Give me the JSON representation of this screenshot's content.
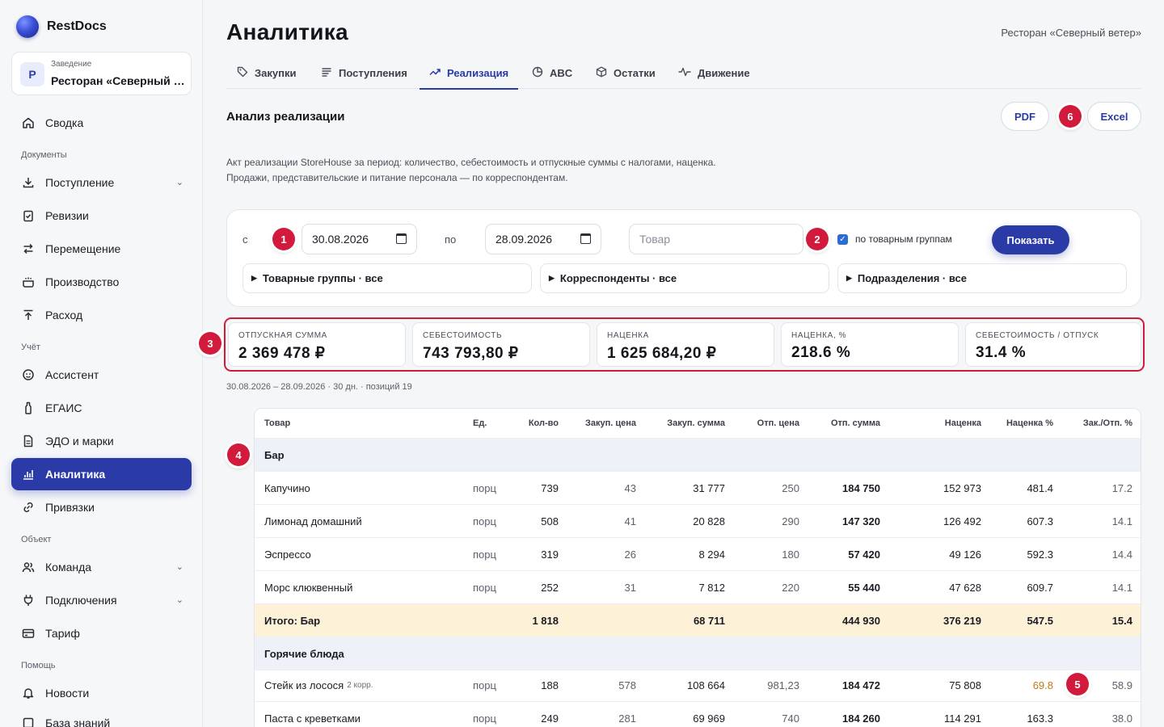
{
  "app": {
    "name": "RestDocs"
  },
  "venue": {
    "caption": "Заведение",
    "avatar": "Р",
    "name": "Ресторан «Северный ветер»"
  },
  "sidebar": {
    "summary": {
      "label": "Сводка",
      "icon": "home-icon"
    },
    "sections": {
      "documents": "Документы",
      "accounting": "Учёт",
      "object": "Объект",
      "help": "Помощь"
    },
    "items": {
      "incoming": "Поступление",
      "revisions": "Ревизии",
      "transfer": "Перемещение",
      "production": "Производство",
      "expense": "Расход",
      "assistant": "Ассистент",
      "egais": "ЕГАИС",
      "edo": "ЭДО и марки",
      "analytics": "Аналитика",
      "bindings": "Привязки",
      "team": "Команда",
      "connections": "Подключения",
      "tariff": "Тариф",
      "news": "Новости",
      "kb": "База знаний"
    }
  },
  "header": {
    "title": "Аналитика",
    "venue": "Ресторан «Северный ветер»"
  },
  "tabs": [
    {
      "label": "Закупки",
      "icon": "tag-icon"
    },
    {
      "label": "Поступления",
      "icon": "list-icon"
    },
    {
      "label": "Реализация",
      "icon": "trend-icon",
      "active": true
    },
    {
      "label": "ABC",
      "icon": "pie-icon"
    },
    {
      "label": "Остатки",
      "icon": "box-icon"
    },
    {
      "label": "Движение",
      "icon": "pulse-icon"
    }
  ],
  "section": {
    "title": "Анализ реализации",
    "pdf": "PDF",
    "excel": "Excel",
    "desc1": "Акт реализации StoreHouse за период: количество, себестоимость и отпускные суммы с налогами, наценка.",
    "desc2": "Продажи, представительские и питание персонала — по корреспондентам."
  },
  "filters": {
    "from_label": "с",
    "from": "30.08.2026",
    "to_label": "по",
    "to": "28.09.2026",
    "product_placeholder": "Товар",
    "by_groups_label": "по товарным группам",
    "by_groups_checked": true,
    "show": "Показать",
    "groups": "Товарные группы · все",
    "correspondents": "Корреспонденты · все",
    "divisions": "Подразделения · все"
  },
  "kpis": [
    {
      "label": "Отпускная сумма",
      "value": "2 369 478 ₽"
    },
    {
      "label": "Себестоимость",
      "value": "743 793,80 ₽"
    },
    {
      "label": "Наценка",
      "value": "1 625 684,20 ₽"
    },
    {
      "label": "Наценка, %",
      "value": "218.6 %"
    },
    {
      "label": "Себестоимость / отпуск",
      "value": "31.4 %"
    }
  ],
  "period_line": "30.08.2026 – 28.09.2026 · 30 дн. · позиций 19",
  "table": {
    "columns": [
      "Товар",
      "Ед.",
      "Кол-во",
      "Закуп. цена",
      "Закуп. сумма",
      "Отп. цена",
      "Отп. сумма",
      "Наценка",
      "Наценка %",
      "Зак./Отп. %"
    ],
    "group1": "Бар",
    "rows1": [
      {
        "name": "Капучино",
        "unit": "порц",
        "qty": "739",
        "buy_price": "43",
        "buy_sum": "31 777",
        "sell_price": "250",
        "sell_sum": "184 750",
        "markup": "152 973",
        "markup_pct": "481.4",
        "ratio": "17.2"
      },
      {
        "name": "Лимонад домашний",
        "unit": "порц",
        "qty": "508",
        "buy_price": "41",
        "buy_sum": "20 828",
        "sell_price": "290",
        "sell_sum": "147 320",
        "markup": "126 492",
        "markup_pct": "607.3",
        "ratio": "14.1"
      },
      {
        "name": "Эспрессо",
        "unit": "порц",
        "qty": "319",
        "buy_price": "26",
        "buy_sum": "8 294",
        "sell_price": "180",
        "sell_sum": "57 420",
        "markup": "49 126",
        "markup_pct": "592.3",
        "ratio": "14.4"
      },
      {
        "name": "Морс клюквенный",
        "unit": "порц",
        "qty": "252",
        "buy_price": "31",
        "buy_sum": "7 812",
        "sell_price": "220",
        "sell_sum": "55 440",
        "markup": "47 628",
        "markup_pct": "609.7",
        "ratio": "14.1"
      }
    ],
    "total1": {
      "name": "Итого: Бар",
      "qty": "1 818",
      "buy_sum": "68 711",
      "sell_sum": "444 930",
      "markup": "376 219",
      "markup_pct": "547.5",
      "ratio": "15.4"
    },
    "group2": "Горячие блюда",
    "rows2": [
      {
        "name": "Стейк из лосося",
        "note": "2 корр.",
        "unit": "порц",
        "qty": "188",
        "buy_price": "578",
        "buy_sum": "108 664",
        "sell_price": "981,23",
        "sell_sum": "184 472",
        "markup": "75 808",
        "markup_pct": "69.8",
        "ratio": "58.9"
      },
      {
        "name": "Паста с креветками",
        "unit": "порц",
        "qty": "249",
        "buy_price": "281",
        "buy_sum": "69 969",
        "sell_price": "740",
        "sell_sum": "184 260",
        "markup": "114 291",
        "markup_pct": "163.3",
        "ratio": "38.0"
      }
    ]
  },
  "markers": [
    "1",
    "2",
    "3",
    "4",
    "5",
    "6"
  ],
  "colors": {
    "accent": "#2a3aa6",
    "marker": "#d11a3c",
    "total_row": "#fdf1d8",
    "group_row": "#eef1f8",
    "warn": "#c07a1a"
  }
}
